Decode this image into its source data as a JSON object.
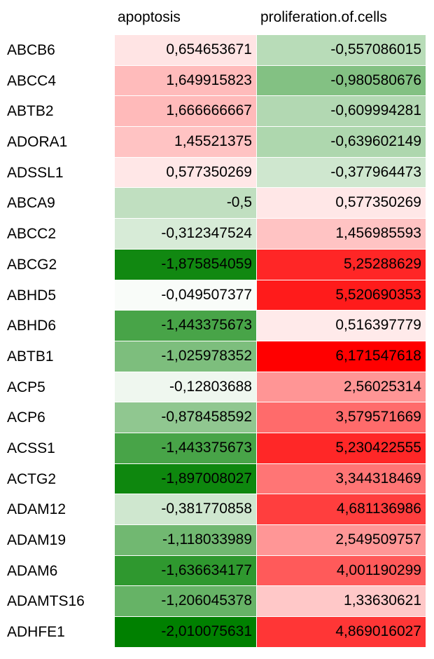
{
  "chart_data": {
    "type": "heatmap",
    "columns": [
      "apoptosis",
      "proliferation.of.cells"
    ],
    "rows": [
      {
        "gene": "ABCB6",
        "values": [
          "0,654653671",
          "-0,557086015"
        ]
      },
      {
        "gene": "ABCC4",
        "values": [
          "1,649915823",
          "-0,980580676"
        ]
      },
      {
        "gene": "ABTB2",
        "values": [
          "1,666666667",
          "-0,609994281"
        ]
      },
      {
        "gene": "ADORA1",
        "values": [
          "1,45521375",
          "-0,639602149"
        ]
      },
      {
        "gene": "ADSSL1",
        "values": [
          "0,577350269",
          "-0,377964473"
        ]
      },
      {
        "gene": "ABCA9",
        "values": [
          "-0,5",
          "0,577350269"
        ]
      },
      {
        "gene": "ABCC2",
        "values": [
          "-0,312347524",
          "1,456985593"
        ]
      },
      {
        "gene": "ABCG2",
        "values": [
          "-1,875854059",
          "5,25288629"
        ]
      },
      {
        "gene": "ABHD5",
        "values": [
          "-0,049507377",
          "5,520690353"
        ]
      },
      {
        "gene": "ABHD6",
        "values": [
          "-1,443375673",
          "0,516397779"
        ]
      },
      {
        "gene": "ABTB1",
        "values": [
          "-1,025978352",
          "6,171547618"
        ]
      },
      {
        "gene": "ACP5",
        "values": [
          "-0,12803688",
          "2,56025314"
        ]
      },
      {
        "gene": "ACP6",
        "values": [
          "-0,878458592",
          "3,579571669"
        ]
      },
      {
        "gene": "ACSS1",
        "values": [
          "-1,443375673",
          "5,230422555"
        ]
      },
      {
        "gene": "ACTG2",
        "values": [
          "-1,897008027",
          "3,344318469"
        ]
      },
      {
        "gene": "ADAM12",
        "values": [
          "-0,381770858",
          "4,681136986"
        ]
      },
      {
        "gene": "ADAM19",
        "values": [
          "-1,118033989",
          "2,549509757"
        ]
      },
      {
        "gene": "ADAM6",
        "values": [
          "-1,636634177",
          "4,001190299"
        ]
      },
      {
        "gene": "ADAMTS16",
        "values": [
          "-1,206045378",
          "1,33630621"
        ]
      },
      {
        "gene": "ADHFE1",
        "values": [
          "-2,010075631",
          "4,869016027"
        ]
      }
    ],
    "colors": {
      "negative": "#008000",
      "neutral": "#ffffff",
      "positive": "#ff0000"
    },
    "scale": {
      "negative_extreme": -2.010075631,
      "positive_extreme": 6.171547618
    }
  }
}
